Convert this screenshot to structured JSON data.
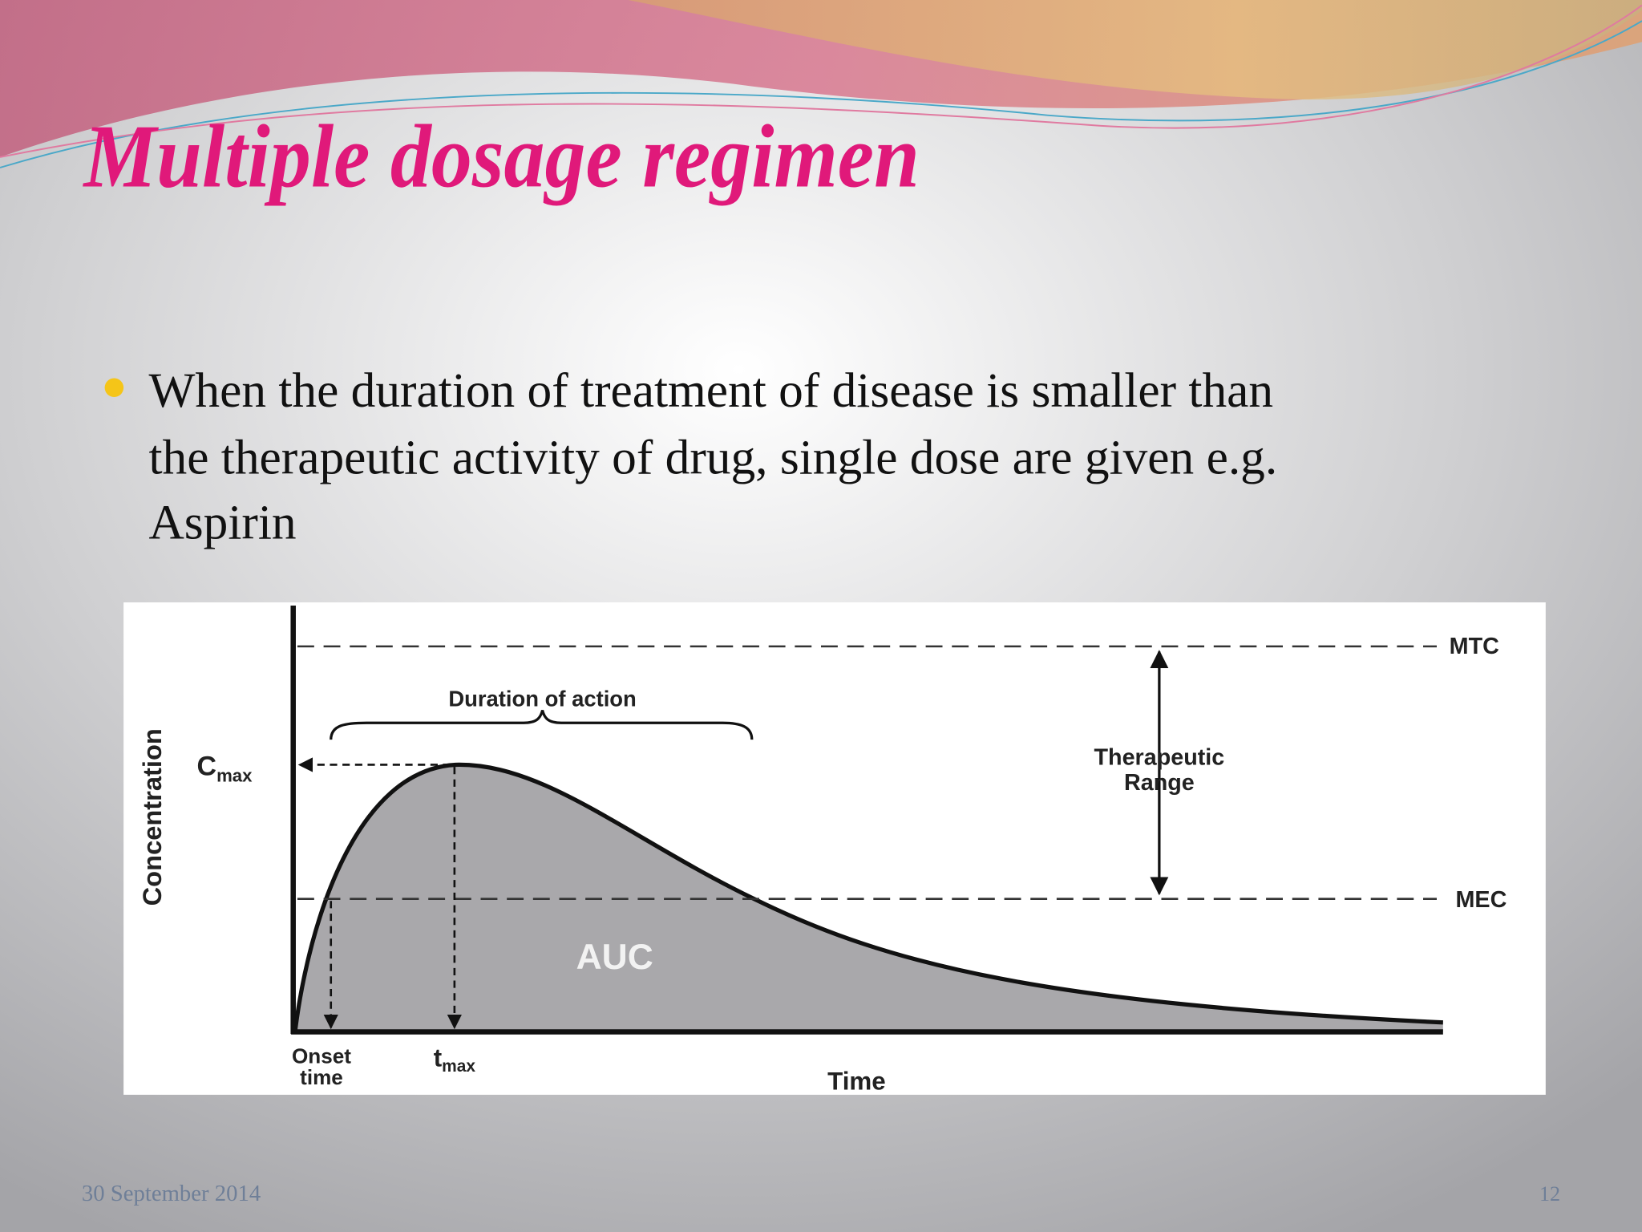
{
  "slide": {
    "title": "Multiple dosage regimen",
    "bullet_lines": [
      "When the duration of treatment of disease is smaller than",
      "the therapeutic  activity of drug, single dose are given e.g.",
      "Aspirin"
    ],
    "footer": {
      "date": "30 September 2014",
      "page": "12"
    }
  },
  "figure": {
    "y_axis_label": "Concentration",
    "x_axis_label": "Time",
    "mtc": "MTC",
    "mec": "MEC",
    "duration": "Duration of action",
    "cmax": {
      "base": "C",
      "sub": "max"
    },
    "tmax": {
      "base": "t",
      "sub": "max"
    },
    "therapeutic_range": [
      "Therapeutic",
      "Range"
    ],
    "auc": "AUC",
    "onset_time": [
      "Onset",
      "time"
    ]
  }
}
